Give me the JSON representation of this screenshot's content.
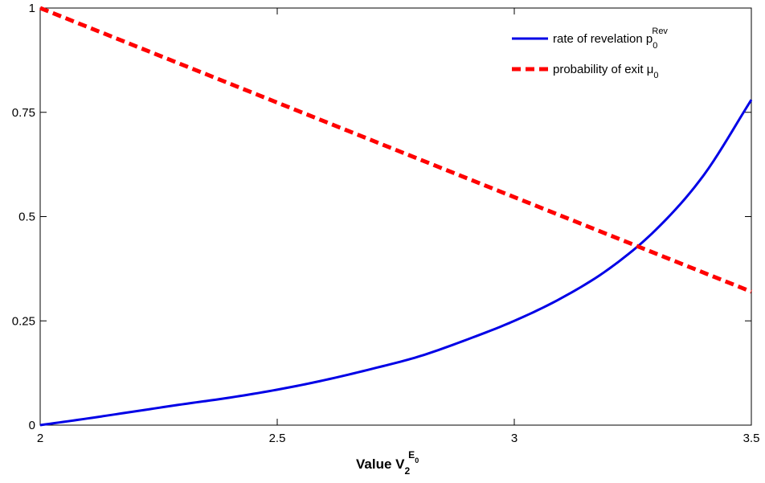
{
  "chart_data": {
    "type": "line",
    "xlabel": {
      "main": "Value V",
      "sub": "2",
      "sup": "E",
      "sup_sub": "0"
    },
    "ylabel": "",
    "xlim": [
      2,
      3.5
    ],
    "ylim": [
      0,
      1
    ],
    "x_ticks": [
      2,
      2.5,
      3,
      3.5
    ],
    "y_ticks": [
      0,
      0.25,
      0.5,
      0.75,
      1
    ],
    "x_tick_labels": [
      "2",
      "2.5",
      "3",
      "3.5"
    ],
    "y_tick_labels": [
      "0",
      "0.25",
      "0.5",
      "0.75",
      "1"
    ],
    "grid": false,
    "legend_position": "top-right",
    "series": [
      {
        "name": "rate of revelation p",
        "name_sub": "0",
        "name_sup": "Rev",
        "color": "#0000e6",
        "style": "solid",
        "x": [
          2.0,
          2.1,
          2.2,
          2.3,
          2.4,
          2.5,
          2.6,
          2.7,
          2.8,
          2.9,
          3.0,
          3.1,
          3.2,
          3.3,
          3.4,
          3.5
        ],
        "y": [
          0.0,
          0.016,
          0.033,
          0.05,
          0.066,
          0.085,
          0.108,
          0.135,
          0.165,
          0.205,
          0.25,
          0.305,
          0.375,
          0.47,
          0.6,
          0.78
        ]
      },
      {
        "name": "probability of exit μ",
        "name_sub": "0",
        "color": "#ff0000",
        "style": "dashed",
        "x": [
          2.0,
          3.5
        ],
        "y": [
          1.0,
          0.32
        ]
      }
    ]
  }
}
